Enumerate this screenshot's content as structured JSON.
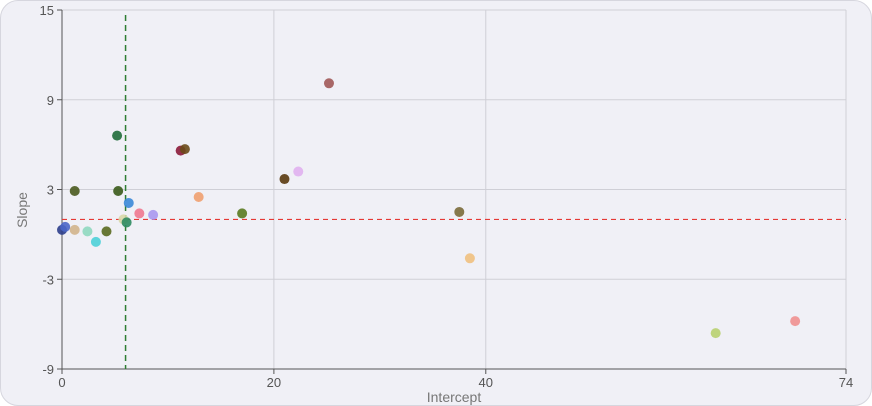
{
  "chart_data": {
    "type": "scatter",
    "xlabel": "Intercept",
    "ylabel": "Slope",
    "xlim": [
      0,
      74
    ],
    "ylim": [
      -9,
      15
    ],
    "x_ticks": [
      0,
      20,
      40,
      74
    ],
    "y_ticks": [
      -9,
      -3,
      3,
      9,
      15
    ],
    "grid": true,
    "reference_lines": [
      {
        "orientation": "vertical",
        "value": 6.0,
        "color": "#2e7d32",
        "style": "dashed"
      },
      {
        "orientation": "horizontal",
        "value": 1.0,
        "color": "#e53935",
        "style": "dashed"
      }
    ],
    "points": [
      {
        "x": 0.0,
        "y": 0.3,
        "color": "#2c3e8c"
      },
      {
        "x": 0.3,
        "y": 0.5,
        "color": "#4a66c8"
      },
      {
        "x": 1.2,
        "y": 0.3,
        "color": "#d2b48c"
      },
      {
        "x": 1.2,
        "y": 2.9,
        "color": "#4a5a1f"
      },
      {
        "x": 2.4,
        "y": 0.2,
        "color": "#8fd8c0"
      },
      {
        "x": 3.2,
        "y": -0.5,
        "color": "#4dd0d8"
      },
      {
        "x": 4.2,
        "y": 0.2,
        "color": "#5a6a20"
      },
      {
        "x": 5.2,
        "y": 6.6,
        "color": "#1f6b3a"
      },
      {
        "x": 5.3,
        "y": 2.9,
        "color": "#3a5a1a"
      },
      {
        "x": 5.8,
        "y": 1.0,
        "color": "#d8d8a8"
      },
      {
        "x": 6.1,
        "y": 0.8,
        "color": "#2e8b60"
      },
      {
        "x": 6.3,
        "y": 2.1,
        "color": "#3a88d8"
      },
      {
        "x": 7.3,
        "y": 1.4,
        "color": "#f07890"
      },
      {
        "x": 8.6,
        "y": 1.3,
        "color": "#a898f0"
      },
      {
        "x": 11.2,
        "y": 5.6,
        "color": "#8b1a3a"
      },
      {
        "x": 11.6,
        "y": 5.7,
        "color": "#6a4a18"
      },
      {
        "x": 12.9,
        "y": 2.5,
        "color": "#f0a070"
      },
      {
        "x": 17.0,
        "y": 1.4,
        "color": "#5a7a20"
      },
      {
        "x": 21.0,
        "y": 3.7,
        "color": "#5a3a10"
      },
      {
        "x": 22.3,
        "y": 4.2,
        "color": "#e0b0f0"
      },
      {
        "x": 25.2,
        "y": 10.1,
        "color": "#a05858"
      },
      {
        "x": 37.5,
        "y": 1.5,
        "color": "#7a6a3a"
      },
      {
        "x": 38.5,
        "y": -1.6,
        "color": "#f0c080"
      },
      {
        "x": 61.7,
        "y": -6.6,
        "color": "#b8d070"
      },
      {
        "x": 69.2,
        "y": -5.8,
        "color": "#f09090"
      }
    ]
  }
}
